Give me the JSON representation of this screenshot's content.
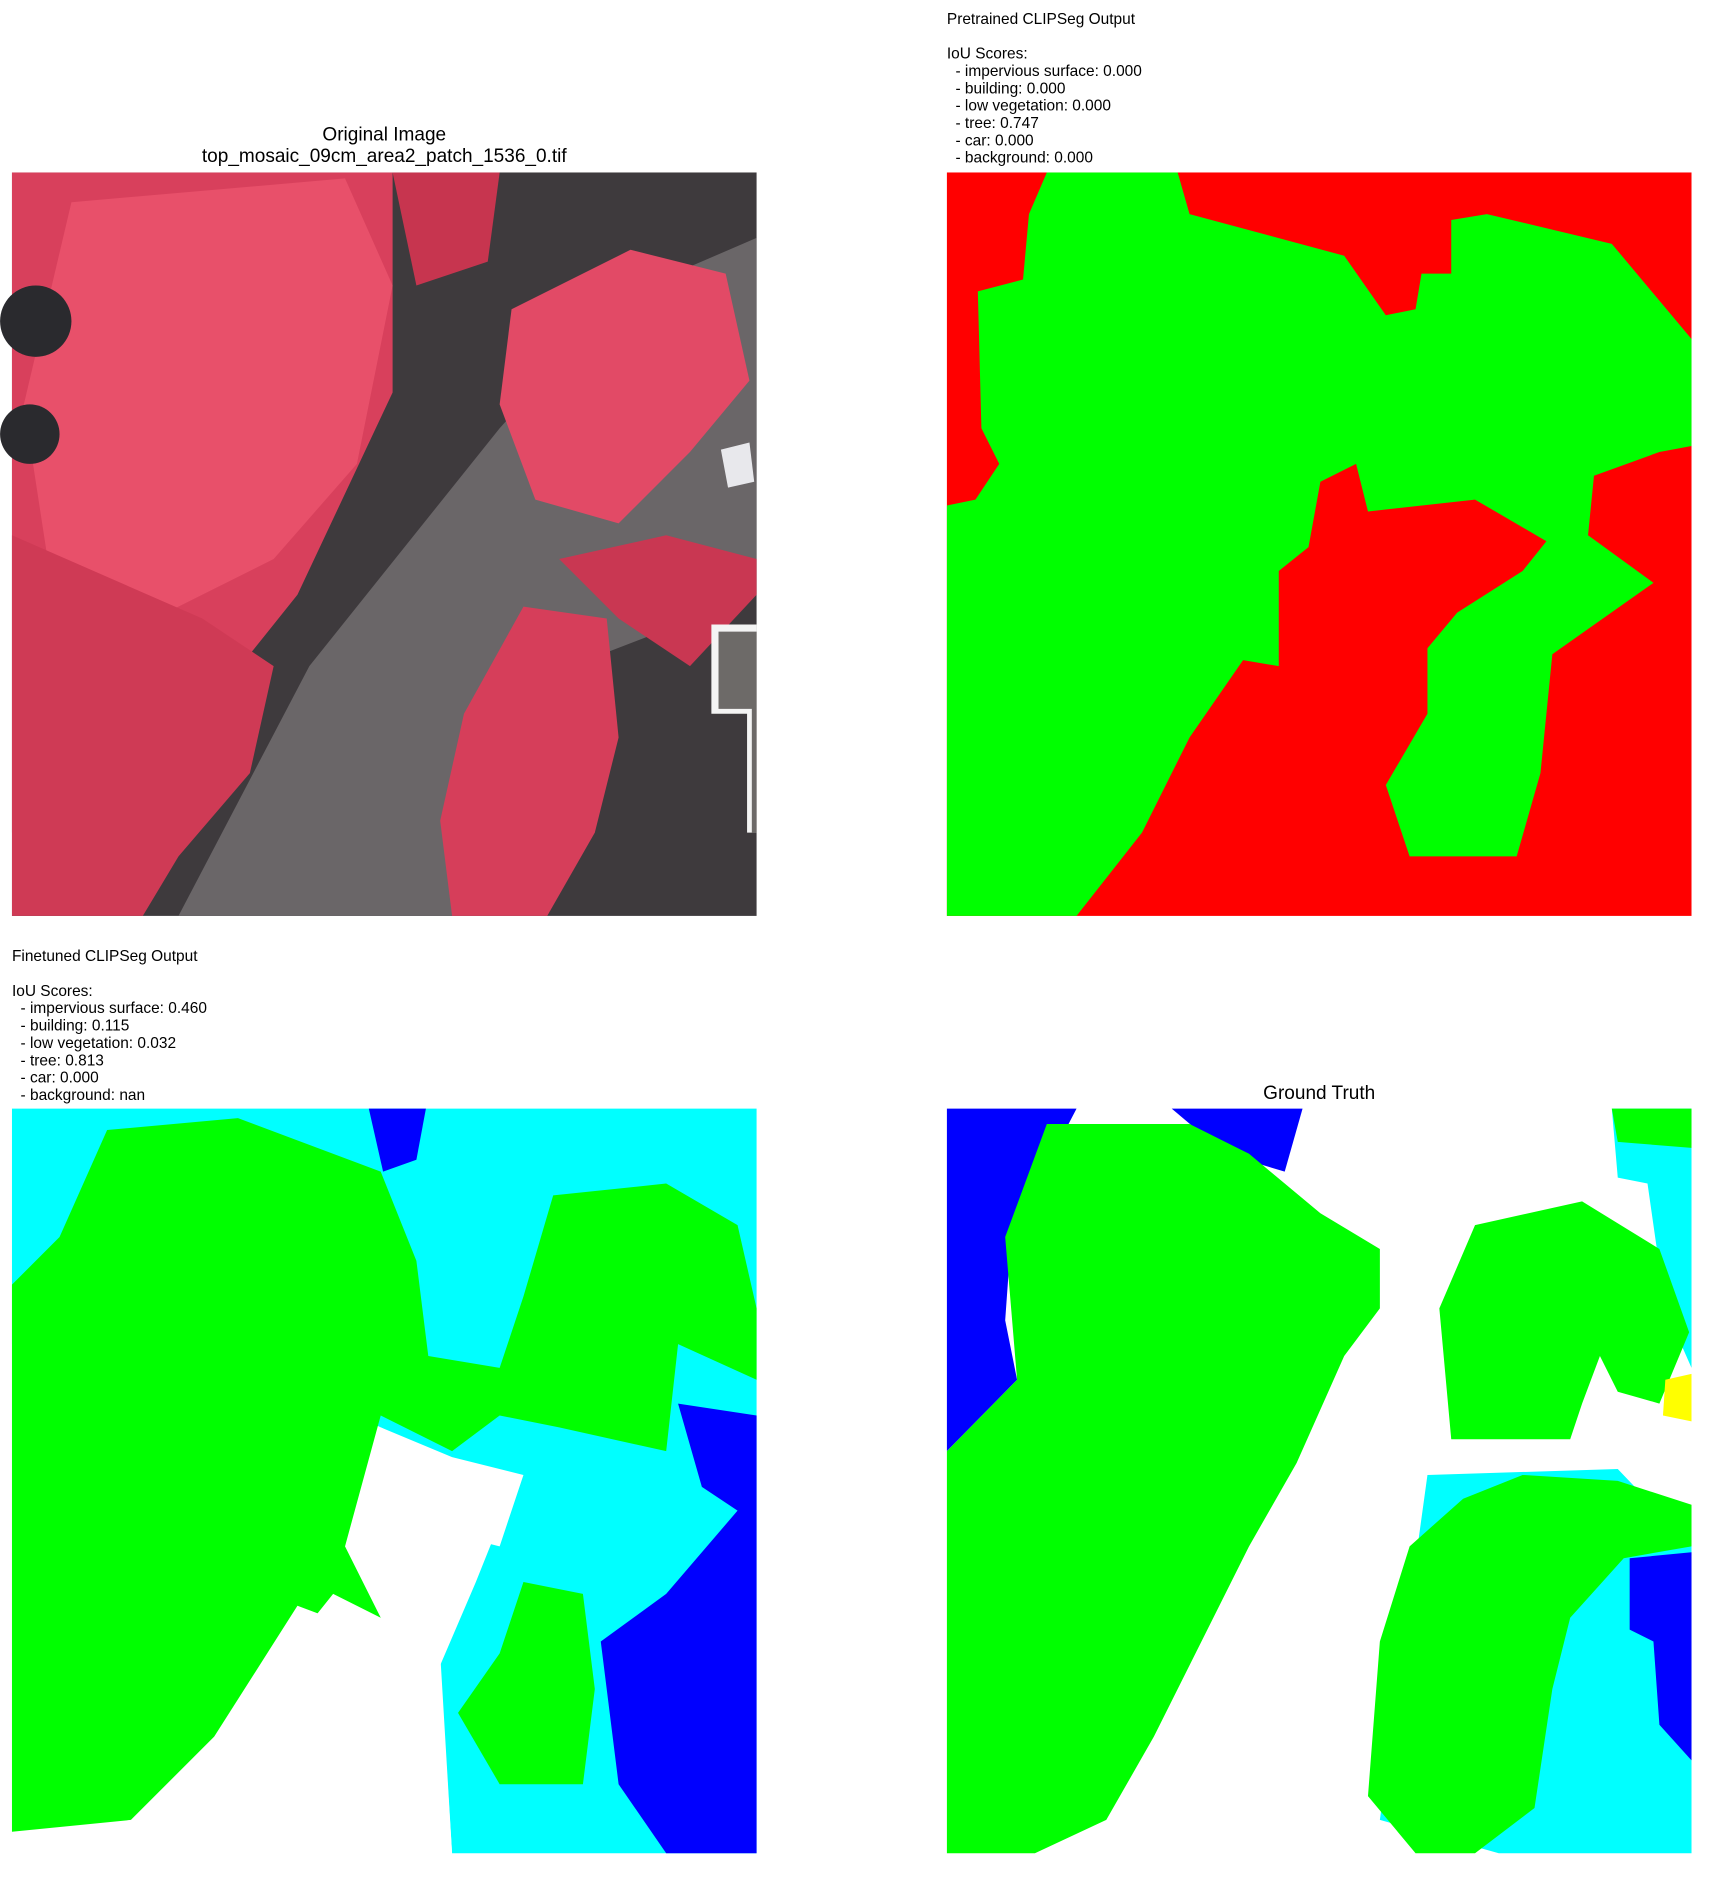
{
  "panels": [
    {
      "title": [
        "Original Image",
        "top_mosaic_09cm_area2_patch_1536_0.tif"
      ]
    },
    {
      "title": "Pretrained CLIPSeg Output",
      "iou_heading": "IoU Scores:",
      "scores": [
        "  - impervious surface: 0.000",
        "  - building: 0.000",
        "  - low vegetation: 0.000",
        "  - tree: 0.747",
        "  - car: 0.000",
        "  - background: 0.000"
      ]
    },
    {
      "title": "Finetuned CLIPSeg Output",
      "iou_heading": "IoU Scores:",
      "scores": [
        "  - impervious surface: 0.460",
        "  - building: 0.115",
        "  - low vegetation: 0.032",
        "  - tree: 0.813",
        "  - car: 0.000",
        "  - background: nan"
      ]
    },
    {
      "title": [
        "Ground Truth"
      ]
    }
  ]
}
